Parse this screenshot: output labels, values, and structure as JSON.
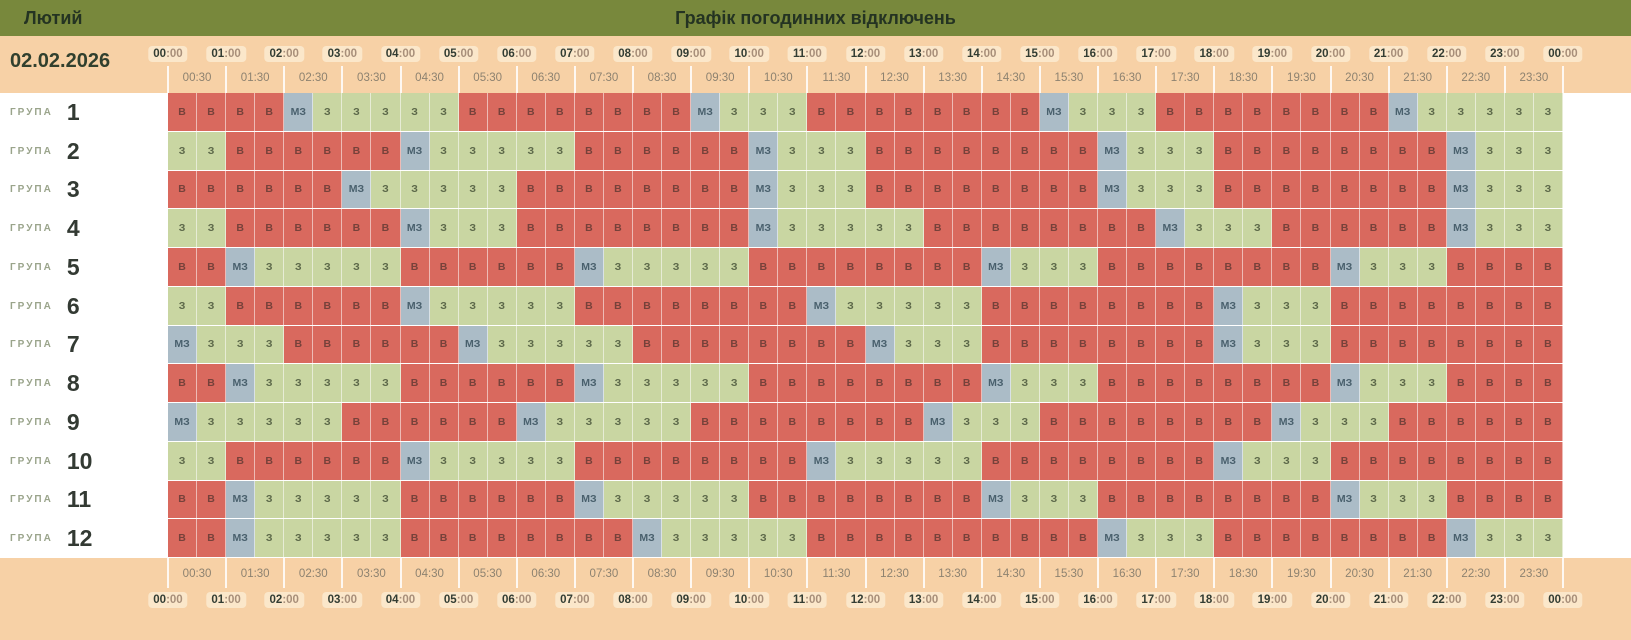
{
  "header": {
    "month": "Лютий",
    "title": "Графік погодинних відключень",
    "date": "02.02.2026"
  },
  "statuses": {
    "В": {
      "class": "off",
      "bg": "#d9695e",
      "fg": "#76413a"
    },
    "З": {
      "class": "on",
      "bg": "#c9d6a2",
      "fg": "#5c6849"
    },
    "МЗ": {
      "class": "maybe",
      "bg": "#abbcc7",
      "fg": "#49606d"
    }
  },
  "colors": {
    "titlebar": "#78883c",
    "band": "#f7d1a6",
    "chip": "#fbe7ca"
  },
  "time_axis": {
    "hours": [
      "00:00",
      "01:00",
      "02:00",
      "03:00",
      "04:00",
      "05:00",
      "06:00",
      "07:00",
      "08:00",
      "09:00",
      "10:00",
      "11:00",
      "12:00",
      "13:00",
      "14:00",
      "15:00",
      "16:00",
      "17:00",
      "18:00",
      "19:00",
      "20:00",
      "21:00",
      "22:00",
      "23:00",
      "00:00"
    ],
    "half_hours": [
      "00:30",
      "01:30",
      "02:30",
      "03:30",
      "04:30",
      "05:30",
      "06:30",
      "07:30",
      "08:30",
      "09:30",
      "10:30",
      "11:30",
      "12:30",
      "13:30",
      "14:30",
      "15:30",
      "16:30",
      "17:30",
      "18:30",
      "19:30",
      "20:30",
      "21:30",
      "22:30",
      "23:30"
    ]
  },
  "chart_data": {
    "type": "heatmap",
    "title": "Графік погодинних відключень",
    "date": "02.02.2026",
    "month": "Лютий",
    "x_range": [
      "00:00",
      "24:00"
    ],
    "cell_duration_minutes": 30,
    "group_label": "ГРУПА",
    "groups": [
      {
        "number": "1",
        "cells": "В В В В МЗ З З З З З В В В В В В В В МЗ З З З В В В В В В В В МЗ З З З В В В В В В В В МЗ З З З З З"
      },
      {
        "number": "2",
        "cells": "З З В В В В В В МЗ З З З З З В В В В В В МЗ З З З В В В В В В В В МЗ З З З В В В В В В В В МЗ З З З"
      },
      {
        "number": "3",
        "cells": "В В В В В В МЗ З З З З З В В В В В В В В МЗ З З З В В В В В В В В МЗ З З З В В В В В В В В МЗ З З З"
      },
      {
        "number": "4",
        "cells": "З З В В В В В В МЗ З З З В В В В В В В В МЗ З З З З З В В В В В В В В МЗ З З З В В В В В В МЗ З З З"
      },
      {
        "number": "5",
        "cells": "В В МЗ З З З З З В В В В В В МЗ З З З З З В В В В В В В В МЗ З З З В В В В В В В В МЗ З З З В В В В"
      },
      {
        "number": "6",
        "cells": "З З В В В В В В МЗ З З З З З В В В В В В В В МЗ З З З З З В В В В В В В В МЗ З З З В В В В В В В В"
      },
      {
        "number": "7",
        "cells": "МЗ З З З В В В В В В МЗ З З З З З В В В В В В В В МЗ З З З В В В В В В В В МЗ З З З В В В В В В В В"
      },
      {
        "number": "8",
        "cells": "В В МЗ З З З З З В В В В В В МЗ З З З З З В В В В В В В В МЗ З З З В В В В В В В В МЗ З З З В В В В"
      },
      {
        "number": "9",
        "cells": "МЗ З З З З З В В В В В В МЗ З З З З З В В В В В В В В МЗ З З З В В В В В В В В МЗ З З З В В В В В В"
      },
      {
        "number": "10",
        "cells": "З З В В В В В В МЗ З З З З З В В В В В В В В МЗ З З З З З В В В В В В В В МЗ З З З В В В В В В В В"
      },
      {
        "number": "11",
        "cells": "В В МЗ З З З З З В В В В В В МЗ З З З З З В В В В В В В В МЗ З З З В В В В В В В В МЗ З З З В В В В"
      },
      {
        "number": "12",
        "cells": "В В МЗ З З З З З В В В В В В В В МЗ З З З З З В В В В В В В В В В МЗ З З З В В В В В В В В МЗ З З З"
      }
    ]
  }
}
